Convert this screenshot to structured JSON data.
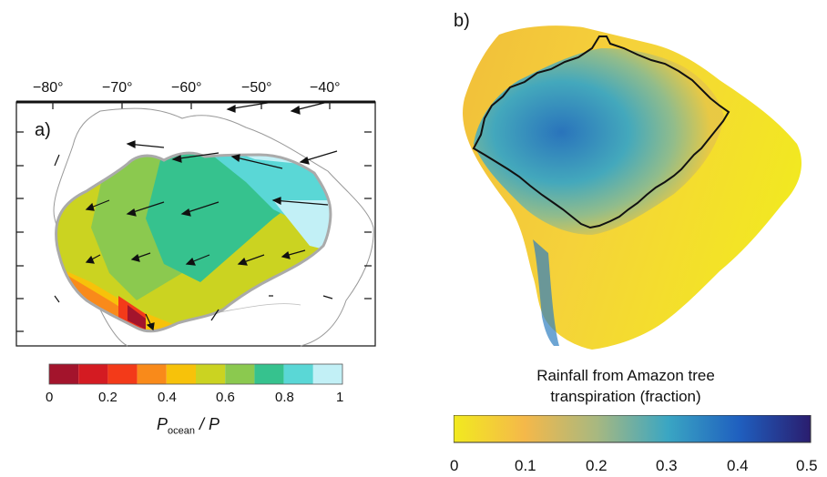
{
  "panel_a": {
    "label": "a)",
    "lon_labels": [
      "−80°",
      "−70°",
      "−60°",
      "−50°",
      "−40°"
    ],
    "colorbar": {
      "ticks": [
        "0",
        "0.2",
        "0.4",
        "0.6",
        "0.8",
        "1"
      ],
      "label_main": "P",
      "label_sub": "ocean",
      "label_rest": " / P",
      "colors": [
        "#a3142c",
        "#d41b22",
        "#f33a19",
        "#f98a1a",
        "#f7c20a",
        "#cbd321",
        "#8bc94f",
        "#36c28e",
        "#5ad7d6",
        "#c2f0f6"
      ]
    }
  },
  "panel_b": {
    "label": "b)",
    "colorbar_title_line1": "Rainfall from Amazon tree",
    "colorbar_title_line2": "transpiration (fraction)",
    "ticks": [
      "0",
      "0.1",
      "0.2",
      "0.3",
      "0.4",
      "0.5"
    ],
    "gradient_colors": [
      "#f2ea1f",
      "#f4b84a",
      "#a8b880",
      "#3aa6c3",
      "#1f5fbf",
      "#2a1d6e"
    ]
  }
}
